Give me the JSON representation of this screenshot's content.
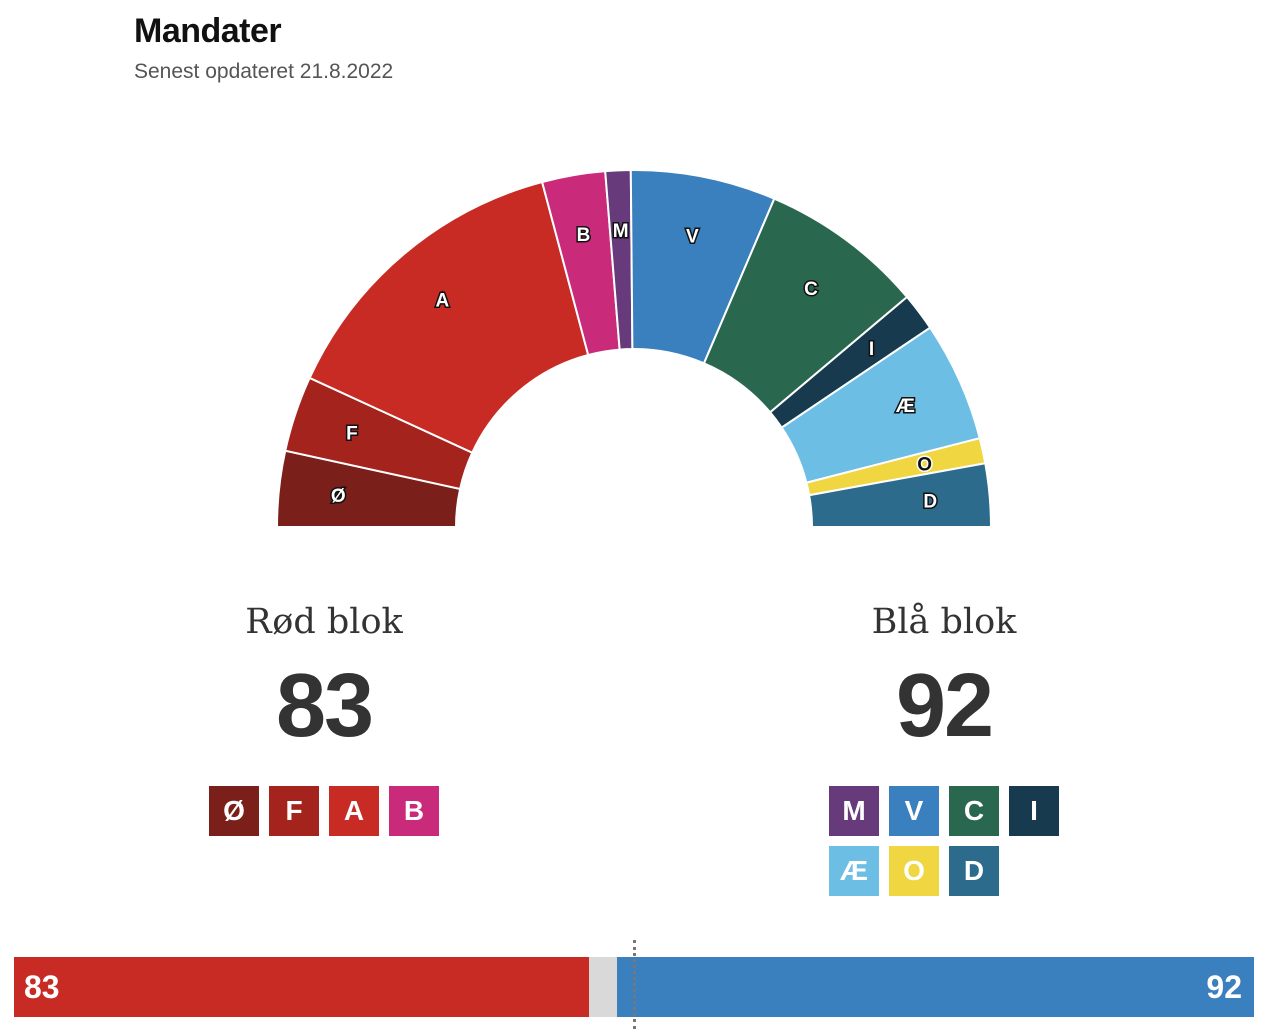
{
  "header": {
    "title": "Mandater",
    "subtitle": "Senest opdateret 21.8.2022"
  },
  "chart_data": {
    "type": "pie",
    "shape": "half-donut",
    "title": "Mandater",
    "total_seats": 179,
    "series": [
      {
        "label": "Ø",
        "value": 12,
        "color": "#7a1f19",
        "block": "red"
      },
      {
        "label": "F",
        "value": 12,
        "color": "#a5231d",
        "block": "red"
      },
      {
        "label": "A",
        "value": 49,
        "color": "#c82a24",
        "block": "red"
      },
      {
        "label": "B",
        "value": 10,
        "color": "#c92b7a",
        "block": "red"
      },
      {
        "label": "M",
        "value": 4,
        "color": "#673a7c",
        "block": "blue"
      },
      {
        "label": "V",
        "value": 23,
        "color": "#3a7fbe",
        "block": "blue"
      },
      {
        "label": "C",
        "value": 26,
        "color": "#2a674f",
        "block": "blue"
      },
      {
        "label": "I",
        "value": 6,
        "color": "#173a4e",
        "block": "blue"
      },
      {
        "label": "Æ",
        "value": 19,
        "color": "#6dbee5",
        "block": "blue"
      },
      {
        "label": "O",
        "value": 4,
        "color": "#f0d640",
        "block": "blue"
      },
      {
        "label": "D",
        "value": 10,
        "color": "#2c6b8c",
        "block": "blue"
      }
    ]
  },
  "blocks": {
    "red": {
      "name": "Rød blok",
      "seats": "83",
      "parties": [
        {
          "label": "Ø",
          "color": "#7a1f19"
        },
        {
          "label": "F",
          "color": "#a5231d"
        },
        {
          "label": "A",
          "color": "#c82a24"
        },
        {
          "label": "B",
          "color": "#c92b7a"
        }
      ]
    },
    "blue": {
      "name": "Blå blok",
      "seats": "92",
      "parties": [
        {
          "label": "M",
          "color": "#673a7c"
        },
        {
          "label": "V",
          "color": "#3a7fbe"
        },
        {
          "label": "C",
          "color": "#2a674f"
        },
        {
          "label": "I",
          "color": "#173a4e"
        },
        {
          "label": "Æ",
          "color": "#6dbee5"
        },
        {
          "label": "O",
          "color": "#f0d640"
        },
        {
          "label": "D",
          "color": "#2c6b8c"
        }
      ]
    }
  },
  "seat_bar": {
    "red_value": 83,
    "red_label": "83",
    "undecided_value": 4,
    "blue_value": 92,
    "blue_label": "92",
    "colors": {
      "red": "#c82a24",
      "undecided": "#d9d9d9",
      "blue": "#3a7fbe"
    }
  }
}
